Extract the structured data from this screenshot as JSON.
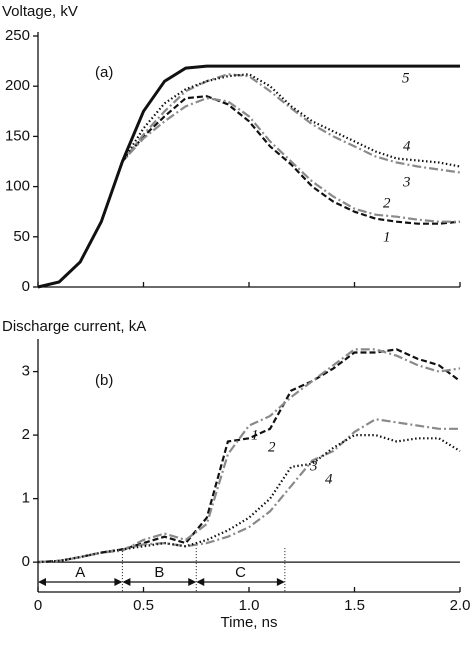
{
  "chart_data": [
    {
      "type": "line",
      "y_label": "Voltage, kV",
      "annotation": "(a)",
      "x": [
        0,
        0.1,
        0.2,
        0.3,
        0.4,
        0.5,
        0.6,
        0.7,
        0.8,
        0.9,
        1.0,
        1.1,
        1.2,
        1.3,
        1.4,
        1.5,
        1.6,
        1.7,
        1.8,
        1.9,
        2.0
      ],
      "xlim": [
        0,
        2
      ],
      "ylim": [
        0,
        250
      ],
      "xticks": [
        0,
        0.5,
        1,
        1.5,
        2
      ],
      "yticks": [
        0,
        50,
        100,
        150,
        200,
        250
      ],
      "series": [
        {
          "name": "1",
          "color": "#111111",
          "dash": "dashed",
          "values": [
            0,
            5,
            25,
            65,
            125,
            150,
            170,
            188,
            190,
            182,
            165,
            140,
            122,
            100,
            85,
            75,
            68,
            65,
            63,
            63,
            65
          ]
        },
        {
          "name": "2",
          "color": "#8a8a8a",
          "dash": "dashdot",
          "values": [
            0,
            5,
            25,
            65,
            125,
            148,
            165,
            180,
            188,
            185,
            170,
            145,
            125,
            105,
            90,
            78,
            72,
            70,
            67,
            65,
            65
          ]
        },
        {
          "name": "3",
          "color": "#8a8a8a",
          "dash": "dashdot",
          "values": [
            0,
            5,
            25,
            65,
            125,
            152,
            175,
            195,
            205,
            212,
            210,
            195,
            178,
            162,
            150,
            140,
            130,
            124,
            120,
            117,
            114
          ]
        },
        {
          "name": "4",
          "color": "#111111",
          "dash": "dotted",
          "values": [
            0,
            5,
            25,
            65,
            125,
            158,
            183,
            197,
            205,
            210,
            212,
            200,
            180,
            165,
            155,
            145,
            135,
            128,
            126,
            124,
            120
          ]
        },
        {
          "name": "5",
          "color": "#111111",
          "dash": "solid",
          "values": [
            0,
            5,
            25,
            65,
            125,
            175,
            205,
            218,
            220,
            220,
            220,
            220,
            220,
            220,
            220,
            220,
            220,
            220,
            220,
            220,
            220
          ]
        }
      ]
    },
    {
      "type": "line",
      "y_label": "Discharge current, kA",
      "x_label": "Time, ns",
      "annotation": "(b)",
      "x": [
        0,
        0.1,
        0.2,
        0.3,
        0.4,
        0.5,
        0.6,
        0.7,
        0.8,
        0.9,
        1.0,
        1.1,
        1.2,
        1.3,
        1.4,
        1.5,
        1.6,
        1.7,
        1.8,
        1.9,
        2.0
      ],
      "xlim": [
        0,
        2
      ],
      "ylim": [
        -0.47,
        3.45
      ],
      "xticks": [
        0,
        0.5,
        {
          "value": 1,
          "label": "1.0"
        },
        1.5,
        {
          "value": 2,
          "label": "2.0"
        }
      ],
      "yticks": [
        0,
        1,
        2,
        3
      ],
      "series": [
        {
          "name": "1",
          "color": "#111111",
          "dash": "dashed",
          "values": [
            0,
            0.02,
            0.08,
            0.15,
            0.2,
            0.3,
            0.4,
            0.3,
            0.7,
            1.9,
            1.95,
            2.1,
            2.7,
            2.85,
            3.05,
            3.3,
            3.3,
            3.35,
            3.2,
            3.1,
            2.85
          ]
        },
        {
          "name": "2",
          "color": "#8a8a8a",
          "dash": "dashdot",
          "values": [
            0,
            0.02,
            0.08,
            0.15,
            0.18,
            0.35,
            0.45,
            0.35,
            0.6,
            1.7,
            2.15,
            2.3,
            2.6,
            2.85,
            3.1,
            3.35,
            3.35,
            3.25,
            3.1,
            3.0,
            3.05
          ]
        },
        {
          "name": "3",
          "color": "#8a8a8a",
          "dash": "dashdot",
          "values": [
            0,
            0.02,
            0.08,
            0.15,
            0.2,
            0.28,
            0.3,
            0.25,
            0.3,
            0.4,
            0.55,
            0.8,
            1.2,
            1.6,
            1.75,
            2.05,
            2.25,
            2.2,
            2.15,
            2.1,
            2.1
          ]
        },
        {
          "name": "4",
          "color": "#111111",
          "dash": "dotted",
          "values": [
            0,
            0.02,
            0.08,
            0.15,
            0.2,
            0.25,
            0.3,
            0.25,
            0.35,
            0.5,
            0.7,
            1.0,
            1.5,
            1.55,
            1.8,
            2.0,
            2.0,
            1.9,
            1.95,
            1.95,
            1.75
          ]
        }
      ],
      "regions": [
        {
          "label": "A",
          "start": 0,
          "end": 0.4
        },
        {
          "label": "B",
          "start": 0.4,
          "end": 0.75
        },
        {
          "label": "C",
          "start": 0.75,
          "end": 1.17
        }
      ]
    }
  ]
}
